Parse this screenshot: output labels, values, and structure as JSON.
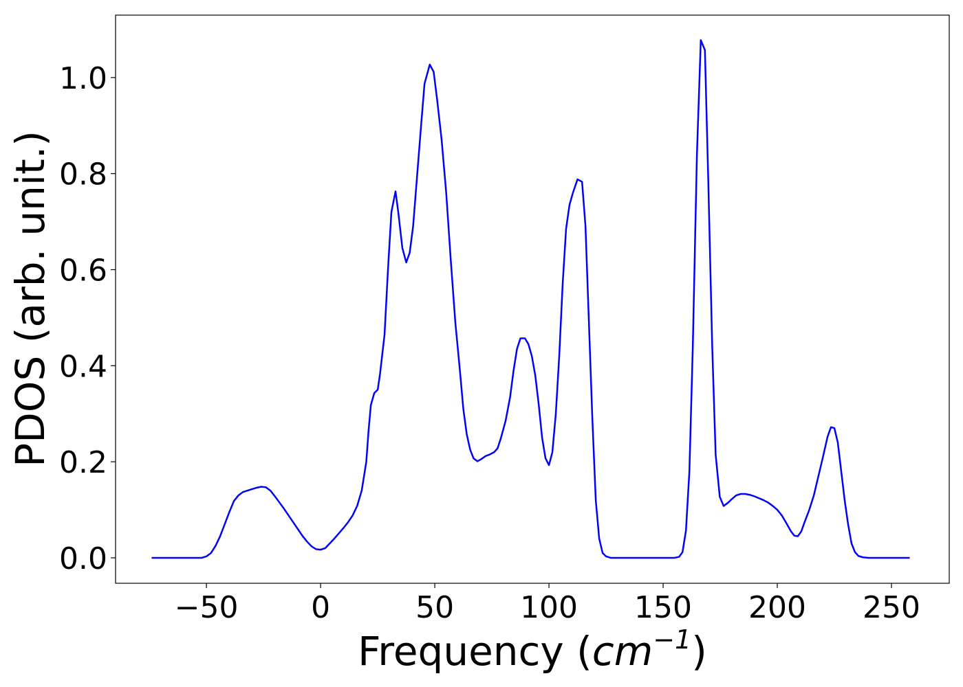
{
  "chart_data": {
    "type": "line",
    "xlabel": [
      "Frequency (",
      "cm",
      "−1",
      ")"
    ],
    "ylabel": "PDOS (arb. unit.)",
    "xlim": [
      -89.8,
      275.3
    ],
    "ylim": [
      -0.053,
      1.13
    ],
    "xticks": [
      {
        "value": -50,
        "label": "−50"
      },
      0,
      50,
      100,
      150,
      200,
      250
    ],
    "yticks": [
      {
        "value": 0,
        "label": "0.0"
      },
      0.2,
      0.4,
      0.6,
      0.8,
      {
        "value": 1,
        "label": "1.0"
      }
    ],
    "grid": false,
    "series": [
      {
        "color": "#0000ff",
        "x": [
          -74,
          -52,
          -50,
          -48,
          -46,
          -44,
          -42,
          -40,
          -38,
          -36,
          -34,
          -32,
          -30,
          -28,
          -26,
          -24,
          -22,
          -20,
          -18,
          -16,
          -14,
          -12,
          -10,
          -8,
          -6,
          -4,
          -2,
          0,
          2,
          4,
          6,
          8,
          10,
          12,
          14,
          16,
          18,
          20,
          21,
          22,
          23.5,
          25,
          26,
          28,
          29.5,
          31,
          32.8,
          34,
          35.8,
          37.5,
          39,
          40.5,
          42,
          44,
          45.5,
          47.8,
          49.5,
          51,
          53,
          55,
          57,
          59,
          61,
          62.5,
          64,
          65.5,
          67,
          68.7,
          70.5,
          72.3,
          74,
          76,
          77.5,
          79,
          81,
          83,
          84.5,
          86,
          87.5,
          89.5,
          91,
          92.5,
          94,
          95.5,
          97,
          98.5,
          100,
          101.5,
          103,
          104.5,
          106,
          107.5,
          109,
          110.5,
          112.5,
          114.5,
          116,
          117.5,
          119,
          120.5,
          122,
          123.5,
          125,
          127,
          155,
          157,
          158.5,
          160,
          161.5,
          163,
          164.8,
          166.5,
          168.3,
          169.8,
          171.5,
          173,
          174.8,
          176.5,
          178.5,
          180,
          182,
          184,
          186,
          188,
          190,
          192,
          194,
          196,
          198,
          200,
          202,
          204,
          206,
          207.5,
          209,
          210.5,
          212,
          214,
          216,
          218,
          220,
          222,
          223.5,
          225,
          226.5,
          228,
          229.5,
          231,
          232.5,
          234,
          235.5,
          237.5,
          240,
          258
        ],
        "values": [
          0,
          0,
          0.003,
          0.01,
          0.025,
          0.045,
          0.07,
          0.095,
          0.118,
          0.13,
          0.137,
          0.14,
          0.143,
          0.146,
          0.148,
          0.147,
          0.14,
          0.128,
          0.115,
          0.102,
          0.088,
          0.074,
          0.06,
          0.046,
          0.034,
          0.024,
          0.018,
          0.017,
          0.02,
          0.03,
          0.04,
          0.051,
          0.062,
          0.074,
          0.088,
          0.108,
          0.14,
          0.2,
          0.265,
          0.318,
          0.343,
          0.35,
          0.382,
          0.465,
          0.6,
          0.72,
          0.763,
          0.72,
          0.645,
          0.615,
          0.635,
          0.69,
          0.78,
          0.9,
          0.987,
          1.027,
          1.012,
          0.955,
          0.87,
          0.76,
          0.62,
          0.49,
          0.39,
          0.31,
          0.257,
          0.225,
          0.207,
          0.201,
          0.206,
          0.212,
          0.215,
          0.22,
          0.228,
          0.25,
          0.285,
          0.335,
          0.39,
          0.435,
          0.457,
          0.457,
          0.445,
          0.42,
          0.38,
          0.32,
          0.25,
          0.207,
          0.193,
          0.22,
          0.3,
          0.42,
          0.57,
          0.685,
          0.735,
          0.76,
          0.788,
          0.783,
          0.69,
          0.49,
          0.29,
          0.12,
          0.04,
          0.01,
          0.003,
          0,
          0,
          0.002,
          0.012,
          0.057,
          0.18,
          0.44,
          0.84,
          1.078,
          1.057,
          0.78,
          0.44,
          0.215,
          0.127,
          0.108,
          0.115,
          0.122,
          0.13,
          0.133,
          0.133,
          0.131,
          0.128,
          0.124,
          0.12,
          0.115,
          0.108,
          0.1,
          0.088,
          0.072,
          0.055,
          0.046,
          0.045,
          0.055,
          0.075,
          0.1,
          0.13,
          0.17,
          0.21,
          0.252,
          0.272,
          0.27,
          0.24,
          0.18,
          0.12,
          0.07,
          0.03,
          0.012,
          0.004,
          0.001,
          0,
          0
        ]
      }
    ]
  }
}
